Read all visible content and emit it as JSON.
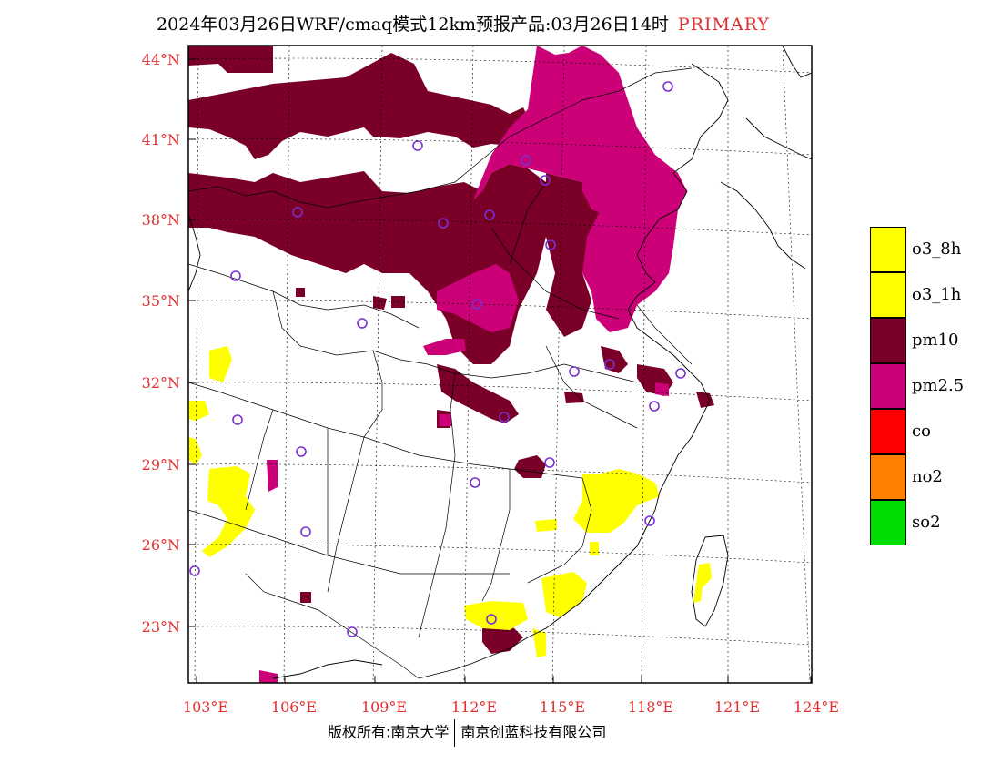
{
  "title": {
    "main": "2024年03月26日WRF/cmaq模式12km预报产品:03月26日14时",
    "tag": "PRIMARY"
  },
  "axes": {
    "lat_labels": [
      "44°N",
      "41°N",
      "38°N",
      "35°N",
      "32°N",
      "29°N",
      "26°N",
      "23°N"
    ],
    "lon_labels": [
      "103°E",
      "106°E",
      "109°E",
      "112°E",
      "115°E",
      "118°E",
      "121°E",
      "124°E"
    ],
    "label_color": "#e03030"
  },
  "legend": [
    {
      "label": "o3_8h",
      "color": "#ffff00"
    },
    {
      "label": "o3_1h",
      "color": "#ffff00"
    },
    {
      "label": "pm10",
      "color": "#7a0027"
    },
    {
      "label": "pm2.5",
      "color": "#cc0077"
    },
    {
      "label": "co",
      "color": "#ff0000"
    },
    {
      "label": "no2",
      "color": "#ff7f00"
    },
    {
      "label": "so2",
      "color": "#00dd00"
    }
  ],
  "footer": {
    "left": "版权所有:南京大学",
    "right": "南京创蓝科技有限公司"
  },
  "colors": {
    "pm10": "#7a0027",
    "pm25": "#cc0077",
    "o3": "#ffff00",
    "station": "#7a30d0"
  },
  "icons": [
    "station-marker-icon"
  ]
}
